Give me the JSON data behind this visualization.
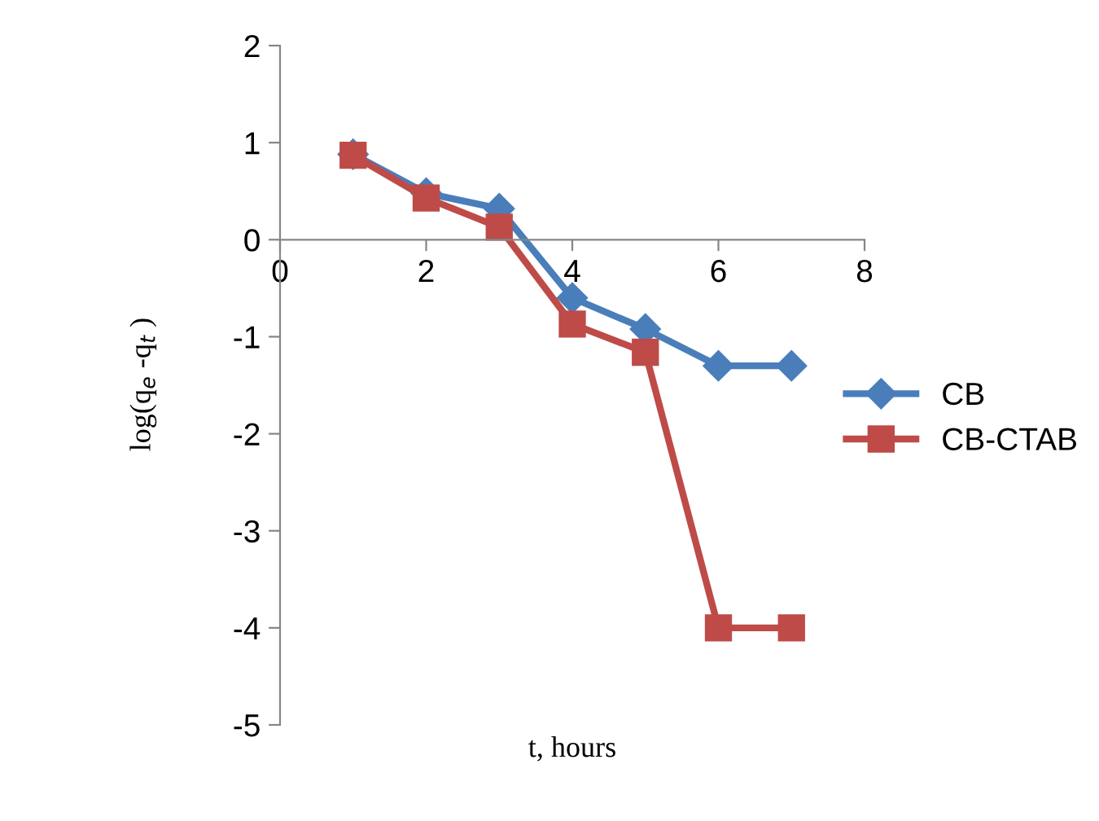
{
  "chart_data": {
    "type": "line",
    "xlabel": "t, hours",
    "ylabel": "log(q$_{e}$ -q$_{t}$ )",
    "x": [
      1,
      2,
      3,
      4,
      5,
      6,
      7
    ],
    "series": [
      {
        "name": "CB",
        "color": "#4a7ebb",
        "marker": "diamond",
        "values": [
          0.88,
          0.48,
          0.32,
          -0.6,
          -0.92,
          -1.3,
          -1.3
        ]
      },
      {
        "name": "CB-CTAB",
        "color": "#be4b48",
        "marker": "square",
        "values": [
          0.87,
          0.43,
          0.13,
          -0.87,
          -1.16,
          -4.0,
          -4.0
        ]
      }
    ],
    "xlim": [
      0,
      8
    ],
    "xticks": [
      0,
      2,
      4,
      6,
      8
    ],
    "ylim": [
      -5,
      2
    ],
    "yticks": [
      -5,
      -4,
      -3,
      -2,
      -1,
      0,
      1,
      2
    ],
    "grid": false,
    "legend": "right",
    "line_style": "solid"
  }
}
